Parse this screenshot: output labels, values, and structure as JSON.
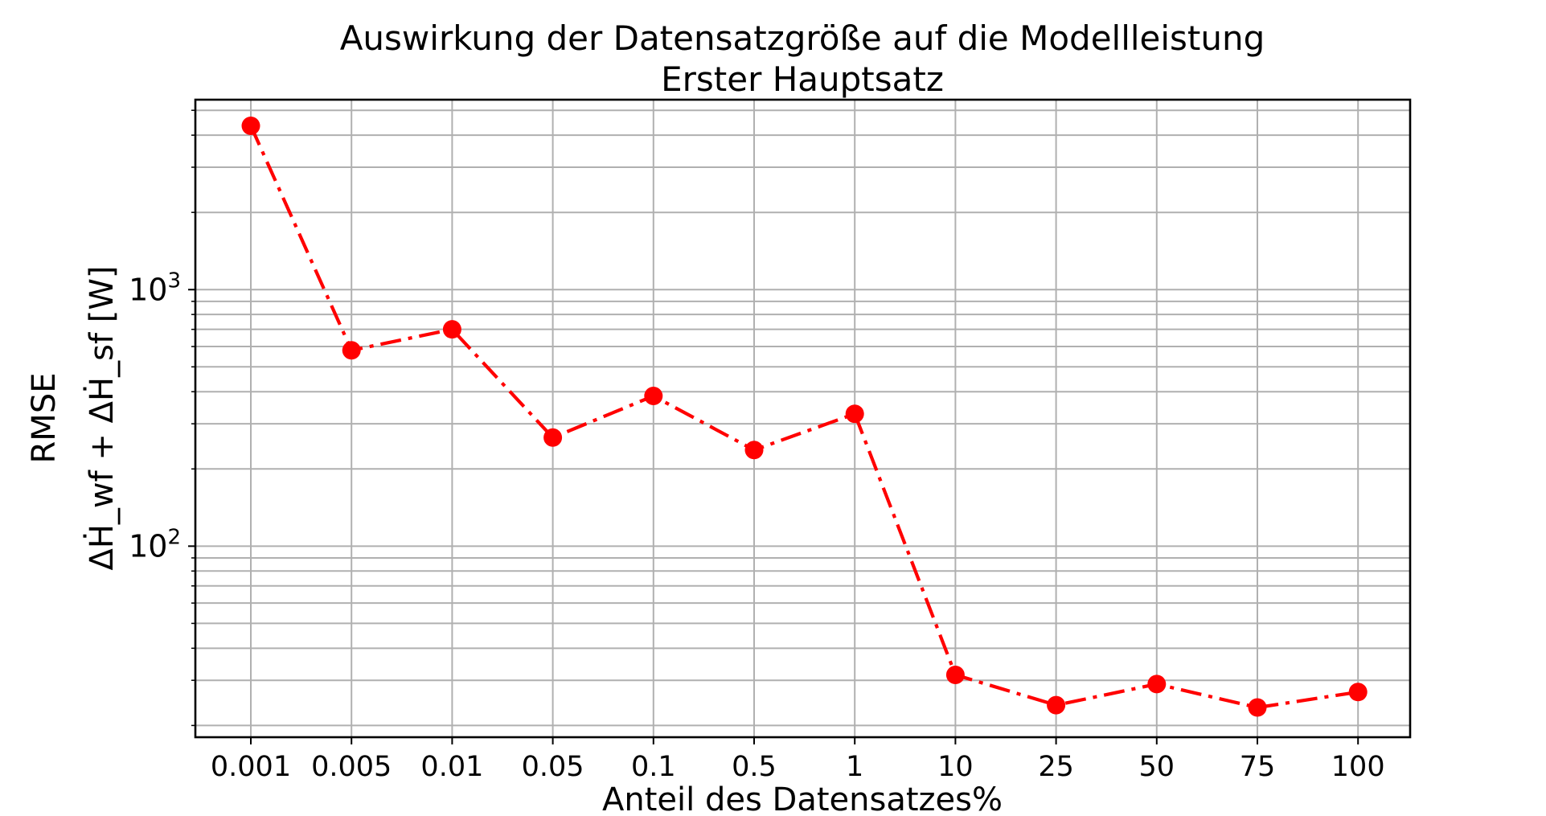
{
  "chart_data": {
    "type": "line",
    "title": "Auswirkung der Datensatzgröße auf die Modellleistung",
    "subtitle": "Erster Hauptsatz",
    "xlabel": "Anteil des Datensatzes%",
    "ylabel_line1": "RMSE",
    "ylabel_line2": "ΔḢ_wf + ΔḢ_sf [W]",
    "y_scale": "log",
    "ylim": [
      18,
      5500
    ],
    "grid": "on (major and minor)",
    "categories": [
      "0.001",
      "0.005",
      "0.01",
      "0.05",
      "0.1",
      "0.5",
      "1",
      "10",
      "25",
      "50",
      "75",
      "100"
    ],
    "y_tick_labels": [
      {
        "value": 100,
        "base": "10",
        "exp": "2"
      },
      {
        "value": 1000,
        "base": "10",
        "exp": "3"
      }
    ],
    "series": [
      {
        "values": [
          4350,
          580,
          700,
          265,
          385,
          237,
          328,
          31.5,
          24,
          29,
          23.5,
          27
        ],
        "color": "#ff0000",
        "line_style": "dash-dot",
        "marker": "circle"
      }
    ]
  }
}
